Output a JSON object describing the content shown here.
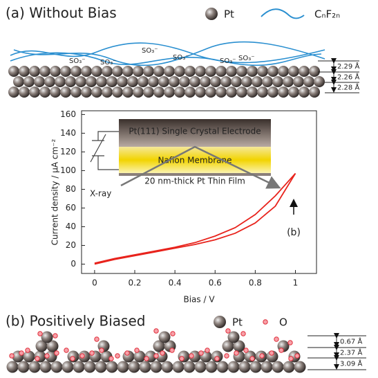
{
  "panel_a": {
    "title": "(a) Without Bias",
    "legend_atom": "Pt",
    "legend_polymer": "CₙF₂ₙ",
    "sulfonates": [
      "SO₃⁻",
      "SO₃⁻",
      "SO₃⁻",
      "SO₃⁻",
      "SO₃⁻",
      "SO₃⁻"
    ],
    "spacings": [
      "2.29 Å",
      "2.26 Å",
      "2.28 Å"
    ]
  },
  "chart_data": {
    "type": "line",
    "xlabel": "Bias / V",
    "ylabel": "Current density / μA cm⁻²",
    "x": [
      0,
      0.1,
      0.2,
      0.3,
      0.4,
      0.5,
      0.6,
      0.7,
      0.8,
      0.9,
      1.0
    ],
    "series": [
      {
        "color": "#e8231c",
        "values": [
          0,
          5,
          9,
          13,
          17,
          21,
          26,
          33,
          44,
          62,
          97
        ]
      },
      {
        "color": "#e8231c",
        "values": [
          1,
          6,
          10,
          14,
          18,
          23,
          30,
          39,
          53,
          73,
          97
        ]
      }
    ],
    "xlim": [
      -0.065,
      1.105
    ],
    "ylim": [
      -10,
      164
    ],
    "xticks": [
      0,
      0.2,
      0.4,
      0.6,
      0.8,
      1
    ],
    "yticks": [
      0,
      20,
      40,
      60,
      80,
      100,
      120,
      140,
      160
    ],
    "inset": {
      "electrode": "Pt(111) Single Crystal Electrode",
      "membrane": "Nafion Membrane",
      "film": "20 nm-thick Pt Thin Film",
      "xray": "X-ray"
    },
    "annotation": "(b)"
  },
  "panel_b": {
    "title": "(b) Positively Biased",
    "legend_atom": "Pt",
    "legend_oxygen": "O",
    "spacings": [
      "0.67 Å",
      "2.37 Å",
      "3.09 Å"
    ]
  }
}
